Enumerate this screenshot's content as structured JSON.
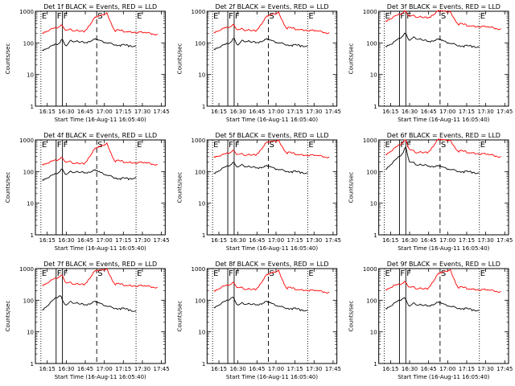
{
  "figure": {
    "colors": {
      "events": "#000000",
      "lld": "#ff0000",
      "axes": "#000000",
      "background": "#ffffff"
    }
  },
  "chart_data": [
    {
      "type": "line",
      "title": "Det 1f BLACK = Events, RED = LLD",
      "xlabel": "Start Time (16-Aug-11 16:05:40)",
      "ylabel": "Counts/sec",
      "yscale": "log",
      "ylim": [
        1,
        1000
      ],
      "x_ticks": [
        "16:15",
        "16:30",
        "16:45",
        "17:00",
        "17:15",
        "17:30",
        "17:45"
      ],
      "y_ticks": [
        "1",
        "10",
        "100",
        "1000"
      ],
      "markers": {
        "E_left": "16:10",
        "F1": "16:22",
        "F2": "16:27",
        "S": "16:54",
        "E_right": "17:25"
      },
      "series": [
        {
          "name": "Events",
          "color": "#000000",
          "x": [
            "16:11",
            "16:17",
            "16:22",
            "16:25",
            "16:27",
            "16:30",
            "16:34",
            "16:37",
            "16:44",
            "16:52",
            "17:06",
            "17:12",
            "17:20",
            "17:25"
          ],
          "values": [
            60,
            75,
            90,
            100,
            130,
            80,
            120,
            110,
            100,
            130,
            95,
            85,
            82,
            80
          ]
        },
        {
          "name": "LLD",
          "color": "#ff0000",
          "x": [
            "16:11",
            "16:17",
            "16:22",
            "16:25",
            "16:27",
            "16:30",
            "16:34",
            "16:37",
            "16:44",
            "16:52",
            "17:02",
            "17:08",
            "17:20",
            "17:30",
            "17:42"
          ],
          "values": [
            210,
            260,
            300,
            330,
            350,
            250,
            260,
            240,
            220,
            600,
            900,
            250,
            230,
            210,
            190
          ]
        }
      ]
    },
    {
      "type": "line",
      "title": "Det 2f BLACK = Events, RED = LLD",
      "xlabel": "Start Time (16-Aug-11 16:05:40)",
      "ylabel": "Counts/sec",
      "yscale": "log",
      "ylim": [
        1,
        1000
      ],
      "x_ticks": [
        "16:15",
        "16:30",
        "16:45",
        "17:00",
        "17:15",
        "17:30",
        "17:45"
      ],
      "y_ticks": [
        "1",
        "10",
        "100",
        "1000"
      ],
      "markers": {
        "E_left": "16:10",
        "F1": "16:22",
        "F2": "16:27",
        "S": "16:54",
        "E_right": "17:25"
      },
      "series": [
        {
          "name": "Events",
          "color": "#000000",
          "x": [
            "16:11",
            "16:17",
            "16:22",
            "16:25",
            "16:27",
            "16:30",
            "16:34",
            "16:37",
            "16:44",
            "16:52",
            "17:06",
            "17:12",
            "17:20",
            "17:25"
          ],
          "values": [
            65,
            80,
            95,
            110,
            140,
            85,
            120,
            110,
            100,
            130,
            95,
            85,
            82,
            80
          ]
        },
        {
          "name": "LLD",
          "color": "#ff0000",
          "x": [
            "16:11",
            "16:17",
            "16:22",
            "16:25",
            "16:27",
            "16:30",
            "16:34",
            "16:37",
            "16:44",
            "16:52",
            "17:02",
            "17:08",
            "17:20",
            "17:30",
            "17:42"
          ],
          "values": [
            220,
            270,
            310,
            340,
            360,
            260,
            270,
            250,
            230,
            650,
            950,
            300,
            270,
            240,
            210
          ]
        }
      ]
    },
    {
      "type": "line",
      "title": "Det 3f BLACK = Events, RED = LLD",
      "xlabel": "Start Time (16-Aug-11 16:05:40)",
      "ylabel": "Counts/sec",
      "yscale": "log",
      "ylim": [
        1,
        1000
      ],
      "x_ticks": [
        "16:15",
        "16:30",
        "16:45",
        "17:00",
        "17:15",
        "17:30",
        "17:45"
      ],
      "y_ticks": [
        "1",
        "10",
        "100",
        "1000"
      ],
      "markers": {
        "E_left": "16:10",
        "F1": "16:22",
        "F2": "16:27",
        "S": "16:54",
        "E_right": "17:25"
      },
      "series": [
        {
          "name": "Events",
          "color": "#000000",
          "x": [
            "16:11",
            "16:17",
            "16:22",
            "16:25",
            "16:27",
            "16:30",
            "16:34",
            "16:37",
            "16:44",
            "16:52",
            "17:06",
            "17:12",
            "17:20",
            "17:25"
          ],
          "values": [
            80,
            100,
            140,
            170,
            200,
            120,
            150,
            130,
            110,
            130,
            90,
            80,
            78,
            75
          ]
        },
        {
          "name": "LLD",
          "color": "#ff0000",
          "x": [
            "16:11",
            "16:17",
            "16:22",
            "16:25",
            "16:27",
            "16:30",
            "16:34",
            "16:37",
            "16:44",
            "16:52",
            "17:02",
            "17:08",
            "17:20",
            "17:30",
            "17:42"
          ],
          "values": [
            500,
            650,
            800,
            900,
            1000,
            700,
            700,
            650,
            600,
            1000,
            1000,
            400,
            350,
            320,
            280
          ]
        }
      ]
    },
    {
      "type": "line",
      "title": "Det 4f BLACK = Events, RED = LLD",
      "xlabel": "Start Time (16-Aug-11 16:05:40)",
      "ylabel": "Counts/sec",
      "yscale": "log",
      "ylim": [
        1,
        1000
      ],
      "x_ticks": [
        "16:15",
        "16:30",
        "16:45",
        "17:00",
        "17:15",
        "17:30",
        "17:45"
      ],
      "y_ticks": [
        "1",
        "10",
        "100",
        "1000"
      ],
      "markers": {
        "E_left": "16:10",
        "F1": "16:22",
        "F2": "16:27",
        "S": "16:54",
        "E_right": "17:25"
      },
      "series": [
        {
          "name": "Events",
          "color": "#000000",
          "x": [
            "16:11",
            "16:17",
            "16:22",
            "16:25",
            "16:27",
            "16:30",
            "16:34",
            "16:37",
            "16:44",
            "16:52",
            "17:06",
            "17:12",
            "17:20",
            "17:25"
          ],
          "values": [
            55,
            70,
            85,
            100,
            120,
            80,
            100,
            95,
            90,
            110,
            70,
            60,
            60,
            65
          ]
        },
        {
          "name": "LLD",
          "color": "#ff0000",
          "x": [
            "16:11",
            "16:17",
            "16:22",
            "16:25",
            "16:27",
            "16:30",
            "16:34",
            "16:37",
            "16:44",
            "16:52",
            "17:02",
            "17:08",
            "17:20",
            "17:30",
            "17:42"
          ],
          "values": [
            170,
            200,
            230,
            250,
            270,
            200,
            200,
            180,
            170,
            500,
            800,
            220,
            200,
            190,
            170
          ]
        }
      ]
    },
    {
      "type": "line",
      "title": "Det 5f BLACK = Events, RED = LLD",
      "xlabel": "Start Time (16-Aug-11 16:05:40)",
      "ylabel": "Counts/sec",
      "yscale": "log",
      "ylim": [
        1,
        1000
      ],
      "x_ticks": [
        "16:15",
        "16:30",
        "16:45",
        "17:00",
        "17:15",
        "17:30",
        "17:45"
      ],
      "y_ticks": [
        "1",
        "10",
        "100",
        "1000"
      ],
      "markers": {
        "E_left": "16:10",
        "F1": "16:22",
        "F2": "16:27",
        "S": "16:54",
        "E_right": "17:25"
      },
      "series": [
        {
          "name": "Events",
          "color": "#000000",
          "x": [
            "16:11",
            "16:17",
            "16:22",
            "16:25",
            "16:27",
            "16:30",
            "16:34",
            "16:37",
            "16:44",
            "16:52",
            "17:06",
            "17:12",
            "17:20",
            "17:25"
          ],
          "values": [
            90,
            120,
            150,
            170,
            190,
            140,
            160,
            140,
            130,
            150,
            110,
            100,
            95,
            90
          ]
        },
        {
          "name": "LLD",
          "color": "#ff0000",
          "x": [
            "16:11",
            "16:17",
            "16:22",
            "16:25",
            "16:27",
            "16:30",
            "16:34",
            "16:37",
            "16:44",
            "16:52",
            "17:02",
            "17:08",
            "17:20",
            "17:30",
            "17:42"
          ],
          "values": [
            300,
            330,
            380,
            420,
            450,
            350,
            350,
            330,
            320,
            800,
            1000,
            400,
            350,
            320,
            290
          ]
        }
      ]
    },
    {
      "type": "line",
      "title": "Det 6f BLACK = Events, RED = LLD",
      "xlabel": "Start Time (16-Aug-11 16:05:40)",
      "ylabel": "Counts/sec",
      "yscale": "log",
      "ylim": [
        1,
        1000
      ],
      "x_ticks": [
        "16:15",
        "16:30",
        "16:45",
        "17:00",
        "17:15",
        "17:30",
        "17:45"
      ],
      "y_ticks": [
        "1",
        "10",
        "100",
        "1000"
      ],
      "markers": {
        "E_left": "16:10",
        "F1": "16:22",
        "F2": "16:27",
        "S": "16:54",
        "E_right": "17:25"
      },
      "series": [
        {
          "name": "Events",
          "color": "#000000",
          "x": [
            "16:11",
            "16:17",
            "16:22",
            "16:25",
            "16:27",
            "16:30",
            "16:34",
            "16:37",
            "16:44",
            "16:52",
            "17:06",
            "17:12",
            "17:20",
            "17:25"
          ],
          "values": [
            120,
            200,
            300,
            400,
            600,
            200,
            180,
            160,
            150,
            150,
            110,
            100,
            95,
            90
          ]
        },
        {
          "name": "LLD",
          "color": "#ff0000",
          "x": [
            "16:11",
            "16:17",
            "16:22",
            "16:25",
            "16:27",
            "16:30",
            "16:34",
            "16:37",
            "16:44",
            "16:52",
            "17:02",
            "17:08",
            "17:20",
            "17:30",
            "17:42"
          ],
          "values": [
            350,
            500,
            700,
            850,
            1000,
            500,
            420,
            400,
            380,
            1000,
            1000,
            450,
            400,
            350,
            300
          ]
        }
      ]
    },
    {
      "type": "line",
      "title": "Det 7f BLACK = Events, RED = LLD",
      "xlabel": "Start Time (16-Aug-11 16:05:40)",
      "ylabel": "Counts/sec",
      "yscale": "log",
      "ylim": [
        1,
        1000
      ],
      "x_ticks": [
        "16:15",
        "16:30",
        "16:45",
        "17:00",
        "17:15",
        "17:30",
        "17:45"
      ],
      "y_ticks": [
        "1",
        "10",
        "100",
        "1000"
      ],
      "markers": {
        "E_left": "16:10",
        "F1": "16:22",
        "F2": "16:27",
        "S": "16:54",
        "E_right": "17:25"
      },
      "series": [
        {
          "name": "Events",
          "color": "#000000",
          "x": [
            "16:11",
            "16:17",
            "16:22",
            "16:25",
            "16:27",
            "16:30",
            "16:34",
            "16:37",
            "16:44",
            "16:52",
            "17:06",
            "17:12",
            "17:20",
            "17:25"
          ],
          "values": [
            50,
            80,
            120,
            140,
            100,
            70,
            90,
            80,
            70,
            90,
            60,
            55,
            50,
            45
          ]
        },
        {
          "name": "LLD",
          "color": "#ff0000",
          "x": [
            "16:11",
            "16:17",
            "16:22",
            "16:25",
            "16:27",
            "16:30",
            "16:34",
            "16:37",
            "16:44",
            "16:52",
            "17:02",
            "17:08",
            "17:20",
            "17:30",
            "17:42"
          ],
          "values": [
            300,
            400,
            500,
            560,
            600,
            350,
            350,
            320,
            300,
            800,
            1000,
            330,
            300,
            280,
            260
          ]
        }
      ]
    },
    {
      "type": "line",
      "title": "Det 8f BLACK = Events, RED = LLD",
      "xlabel": "Start Time (16-Aug-11 16:05:40)",
      "ylabel": "Counts/sec",
      "yscale": "log",
      "ylim": [
        1,
        1000
      ],
      "x_ticks": [
        "16:15",
        "16:30",
        "16:45",
        "17:00",
        "17:15",
        "17:30",
        "17:45"
      ],
      "y_ticks": [
        "1",
        "10",
        "100",
        "1000"
      ],
      "markers": {
        "E_left": "16:10",
        "F1": "16:22",
        "F2": "16:27",
        "S": "16:54",
        "E_right": "17:25"
      },
      "series": [
        {
          "name": "Events",
          "color": "#000000",
          "x": [
            "16:11",
            "16:17",
            "16:22",
            "16:25",
            "16:27",
            "16:30",
            "16:34",
            "16:37",
            "16:44",
            "16:52",
            "17:06",
            "17:12",
            "17:20",
            "17:25"
          ],
          "values": [
            60,
            80,
            100,
            120,
            110,
            70,
            80,
            75,
            70,
            90,
            60,
            55,
            50,
            48
          ]
        },
        {
          "name": "LLD",
          "color": "#ff0000",
          "x": [
            "16:11",
            "16:17",
            "16:22",
            "16:25",
            "16:27",
            "16:30",
            "16:34",
            "16:37",
            "16:44",
            "16:52",
            "17:02",
            "17:08",
            "17:20",
            "17:30",
            "17:42"
          ],
          "values": [
            200,
            260,
            300,
            330,
            350,
            250,
            240,
            220,
            210,
            600,
            900,
            250,
            220,
            200,
            180
          ]
        }
      ]
    },
    {
      "type": "line",
      "title": "Det 9f BLACK = Events, RED = LLD",
      "xlabel": "Start Time (16-Aug-11 16:05:40)",
      "ylabel": "Counts/sec",
      "yscale": "log",
      "ylim": [
        1,
        1000
      ],
      "x_ticks": [
        "16:15",
        "16:30",
        "16:45",
        "17:00",
        "17:15",
        "17:30",
        "17:45"
      ],
      "y_ticks": [
        "1",
        "10",
        "100",
        "1000"
      ],
      "markers": {
        "E_left": "16:10",
        "F1": "16:22",
        "F2": "16:27",
        "S": "16:54",
        "E_right": "17:25"
      },
      "series": [
        {
          "name": "Events",
          "color": "#000000",
          "x": [
            "16:11",
            "16:17",
            "16:22",
            "16:25",
            "16:27",
            "16:30",
            "16:34",
            "16:37",
            "16:44",
            "16:52",
            "17:06",
            "17:12",
            "17:20",
            "17:25"
          ],
          "values": [
            55,
            75,
            100,
            115,
            105,
            65,
            80,
            70,
            65,
            85,
            60,
            55,
            50,
            48
          ]
        },
        {
          "name": "LLD",
          "color": "#ff0000",
          "x": [
            "16:11",
            "16:17",
            "16:22",
            "16:25",
            "16:27",
            "16:30",
            "16:34",
            "16:37",
            "16:44",
            "16:52",
            "17:02",
            "17:08",
            "17:20",
            "17:30",
            "17:42"
          ],
          "values": [
            220,
            280,
            320,
            350,
            370,
            260,
            250,
            230,
            220,
            650,
            950,
            260,
            230,
            210,
            190
          ]
        }
      ]
    }
  ]
}
